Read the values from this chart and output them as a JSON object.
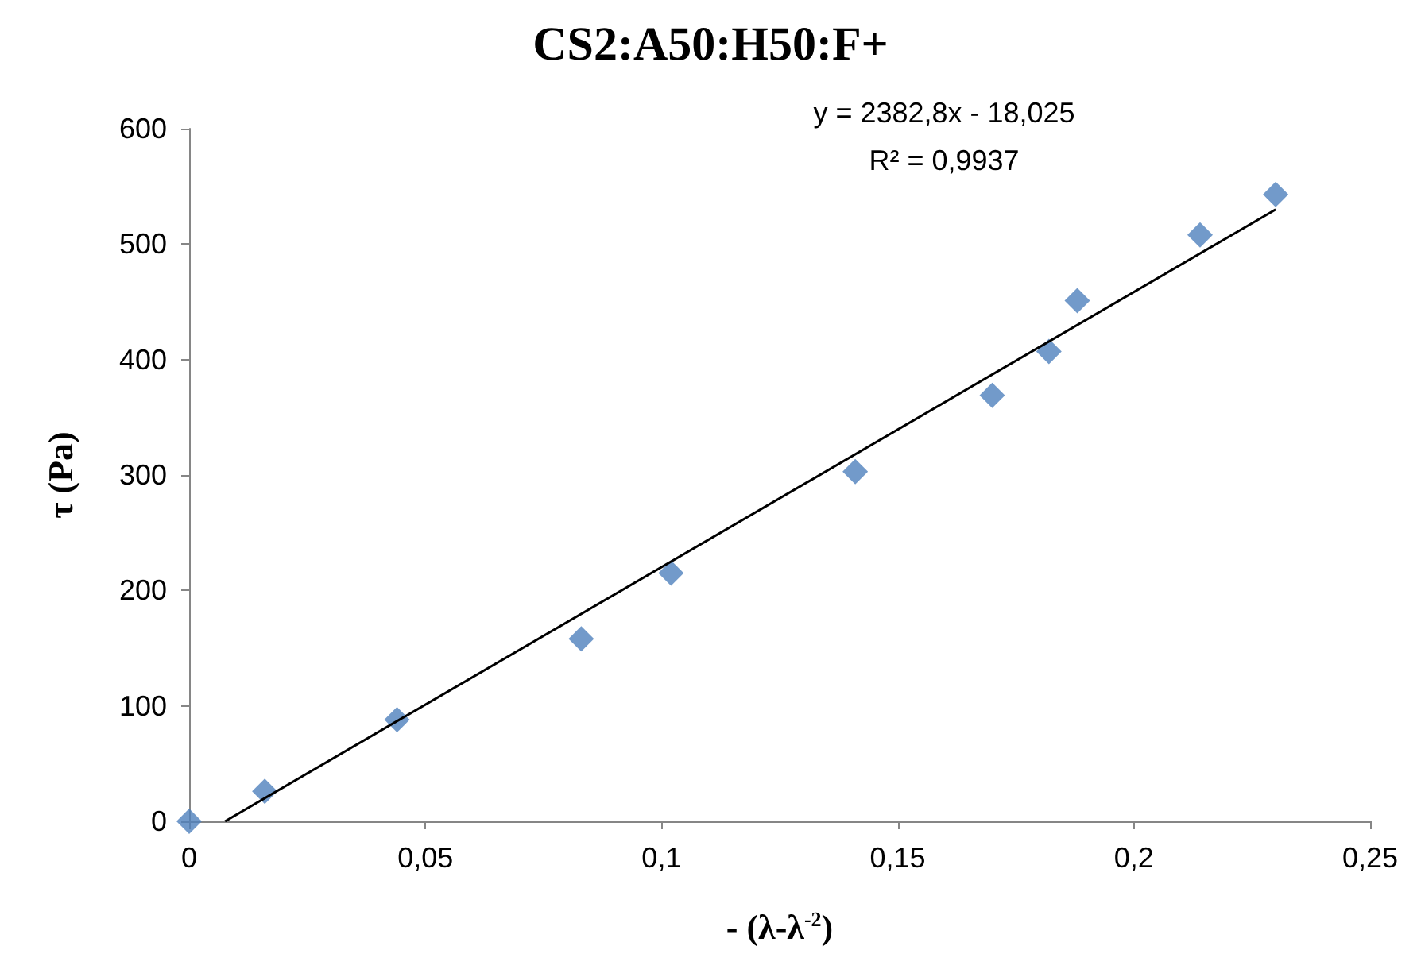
{
  "chart_data": {
    "type": "scatter",
    "title": "CS2:A50:H50:F+",
    "xlabel": "- (λ-λ$^{-2}$)",
    "ylabel": "τ (Pa)",
    "annotations": [
      "y = 2382,8x - 18,025",
      "R² = 0,9937"
    ],
    "x": [
      0,
      0.016,
      0.044,
      0.083,
      0.102,
      0.141,
      0.17,
      0.182,
      0.188,
      0.214,
      0.23
    ],
    "series": [
      {
        "type": "scatter",
        "color": "#4f81bd",
        "marker": "diamond",
        "values": [
          0,
          26,
          88,
          158,
          215,
          303,
          369,
          407,
          451,
          508,
          543
        ]
      },
      {
        "type": "line",
        "color": "#000000",
        "marker": "none",
        "x": [
          0.0076,
          0.23
        ],
        "values": [
          0,
          530
        ]
      }
    ],
    "xlim": [
      0,
      0.25
    ],
    "xticks": [
      0,
      {
        "value": 0.05,
        "label": "0,05"
      },
      {
        "value": 0.1,
        "label": "0,1"
      },
      {
        "value": 0.15,
        "label": "0,15"
      },
      {
        "value": 0.2,
        "label": "0,2"
      },
      {
        "value": 0.25,
        "label": "0,25"
      }
    ],
    "ylim": [
      0,
      600
    ],
    "yticks": [
      0,
      100,
      200,
      300,
      400,
      500,
      600
    ],
    "grid": false
  }
}
